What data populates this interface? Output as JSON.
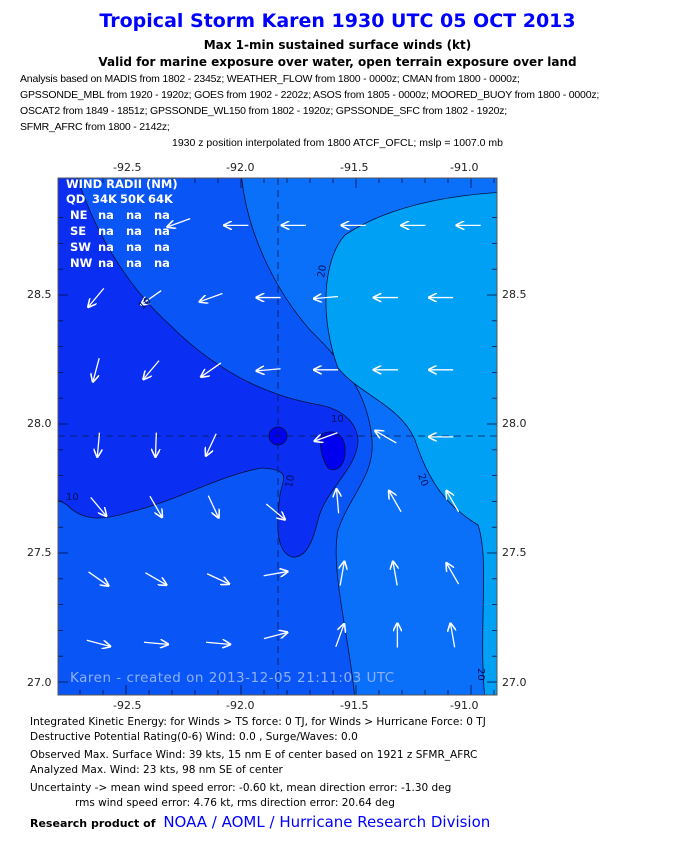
{
  "header": {
    "title": "Tropical Storm Karen 1930 UTC 05 OCT 2013",
    "subtitle1": "Max 1-min sustained surface winds (kt)",
    "subtitle2": "Valid for marine exposure over water, open terrain exposure over land",
    "analysis_lines": [
      "Analysis based on MADIS from 1802 - 2345z; WEATHER_FLOW from 1800 - 0000z; CMAN from 1800 - 0000z;",
      "GPSSONDE_MBL from 1920 - 1920z; GOES from 1902 - 2202z; ASOS from 1805 - 0000z; MOORED_BUOY from 1800 - 0000z;",
      "OSCAT2 from 1849 - 1851z; GPSSONDE_WL150 from 1802 - 1920z; GPSSONDE_SFC from 1802 - 1920z;",
      "SFMR_AFRC from 1800 - 2142z;"
    ],
    "position_line": "1930 z position interpolated from 1800 ATCF_OFCL; mslp = 1007.0 mb"
  },
  "map": {
    "lon_ticks": [
      "-92.5",
      "-92.0",
      "-91.5",
      "-91.0"
    ],
    "lat_ticks": [
      "28.5",
      "28.0",
      "27.5",
      "27.0"
    ],
    "lon_range": [
      -92.79,
      -90.87
    ],
    "lat_range": [
      26.95,
      28.96
    ],
    "center": {
      "lon": -91.84,
      "lat": 27.95
    },
    "contour_levels_kt": [
      5,
      10,
      15,
      20
    ],
    "fill_colors": {
      "below_5": "#0000ee",
      "5_10": "#0a2ef2",
      "10_15": "#0a55f5",
      "15_20": "#0a70fa",
      "above_20": "#00a0f5"
    },
    "contour_labels": [
      "10",
      "20",
      "10",
      "10",
      "10",
      "20",
      "20"
    ],
    "watermark": "Karen - created on 2013-12-05 21:11:03 UTC",
    "wind_radii": {
      "title": "WIND RADII (NM)",
      "header": [
        "QD",
        "34K",
        "50K",
        "64K"
      ],
      "rows": [
        [
          "NE",
          "na",
          "na",
          "na"
        ],
        [
          "SE",
          "na",
          "na",
          "na"
        ],
        [
          "SW",
          "na",
          "na",
          "na"
        ],
        [
          "NW",
          "na",
          "na",
          "na"
        ]
      ]
    },
    "wind_vectors": [
      {
        "lon": -92.27,
        "lat": 28.78,
        "heading": 200
      },
      {
        "lon": -92.02,
        "lat": 28.77,
        "heading": 180
      },
      {
        "lon": -91.77,
        "lat": 28.77,
        "heading": 180
      },
      {
        "lon": -91.51,
        "lat": 28.77,
        "heading": 180
      },
      {
        "lon": -91.25,
        "lat": 28.77,
        "heading": 180
      },
      {
        "lon": -91.01,
        "lat": 28.77,
        "heading": 180
      },
      {
        "lon": -92.63,
        "lat": 28.49,
        "heading": 230
      },
      {
        "lon": -92.39,
        "lat": 28.49,
        "heading": 215
      },
      {
        "lon": -92.13,
        "lat": 28.49,
        "heading": 200
      },
      {
        "lon": -91.88,
        "lat": 28.49,
        "heading": 180
      },
      {
        "lon": -91.63,
        "lat": 28.49,
        "heading": 185
      },
      {
        "lon": -91.37,
        "lat": 28.49,
        "heading": 180
      },
      {
        "lon": -91.13,
        "lat": 28.49,
        "heading": 180
      },
      {
        "lon": -92.63,
        "lat": 28.21,
        "heading": 255
      },
      {
        "lon": -92.39,
        "lat": 28.21,
        "heading": 230
      },
      {
        "lon": -92.13,
        "lat": 28.21,
        "heading": 215
      },
      {
        "lon": -91.88,
        "lat": 28.21,
        "heading": 185
      },
      {
        "lon": -91.63,
        "lat": 28.21,
        "heading": 180
      },
      {
        "lon": -91.37,
        "lat": 28.21,
        "heading": 180
      },
      {
        "lon": -91.13,
        "lat": 28.21,
        "heading": 180
      },
      {
        "lon": -92.62,
        "lat": 27.92,
        "heading": 265
      },
      {
        "lon": -92.37,
        "lat": 27.92,
        "heading": 268
      },
      {
        "lon": -92.13,
        "lat": 27.92,
        "heading": 245
      },
      {
        "lon": -91.63,
        "lat": 27.95,
        "heading": 200
      },
      {
        "lon": -91.37,
        "lat": 27.95,
        "heading": 150
      },
      {
        "lon": -91.13,
        "lat": 27.95,
        "heading": 180
      },
      {
        "lon": -92.62,
        "lat": 27.68,
        "heading": 310
      },
      {
        "lon": -92.37,
        "lat": 27.68,
        "heading": 300
      },
      {
        "lon": -92.12,
        "lat": 27.68,
        "heading": 295
      },
      {
        "lon": -91.85,
        "lat": 27.66,
        "heading": 320
      },
      {
        "lon": -91.58,
        "lat": 27.7,
        "heading": 95
      },
      {
        "lon": -91.33,
        "lat": 27.7,
        "heading": 120
      },
      {
        "lon": -91.08,
        "lat": 27.7,
        "heading": 120
      },
      {
        "lon": -92.62,
        "lat": 27.4,
        "heading": 325
      },
      {
        "lon": -92.37,
        "lat": 27.4,
        "heading": 330
      },
      {
        "lon": -92.1,
        "lat": 27.4,
        "heading": 335
      },
      {
        "lon": -91.85,
        "lat": 27.42,
        "heading": 10
      },
      {
        "lon": -91.56,
        "lat": 27.42,
        "heading": 80
      },
      {
        "lon": -91.33,
        "lat": 27.42,
        "heading": 100
      },
      {
        "lon": -91.08,
        "lat": 27.42,
        "heading": 120
      },
      {
        "lon": -92.62,
        "lat": 27.15,
        "heading": 345
      },
      {
        "lon": -92.37,
        "lat": 27.15,
        "heading": 355
      },
      {
        "lon": -92.1,
        "lat": 27.15,
        "heading": 355
      },
      {
        "lon": -91.85,
        "lat": 27.18,
        "heading": 15
      },
      {
        "lon": -91.57,
        "lat": 27.18,
        "heading": 70
      },
      {
        "lon": -91.32,
        "lat": 27.18,
        "heading": 90
      },
      {
        "lon": -91.08,
        "lat": 27.18,
        "heading": 100
      }
    ]
  },
  "footer": {
    "ike": "Integrated Kinetic Energy: for Winds > TS force: 0 TJ, for Winds > Hurricane Force: 0 TJ",
    "dpr": "Destructive Potential Rating(0-6)   Wind: 0.0 , Surge/Waves: 0.0",
    "observed_max": "Observed Max. Surface Wind: 39 kts, 15 nm E of center based on 1921 z SFMR_AFRC",
    "analyzed_max": "Analyzed Max. Wind: 23 kts, 98 nm  SE of center",
    "uncertainty1": "Uncertainty -> mean wind speed error:  -0.60 kt, mean direction error:  -1.30 deg",
    "uncertainty2": "rms wind speed error: 4.76 kt, rms direction error: 20.64 deg",
    "research_label": "Research product of",
    "research_link": "NOAA  /  AOML  /  Hurricane Research Division"
  }
}
